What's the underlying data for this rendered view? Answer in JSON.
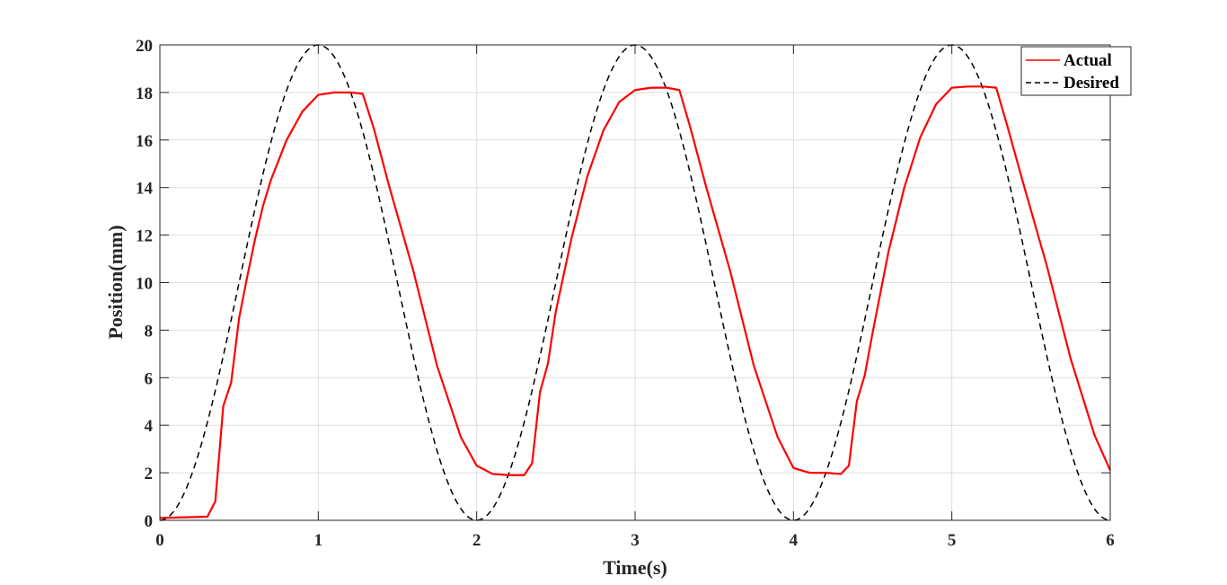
{
  "chart_data": {
    "type": "line",
    "title": "",
    "xlabel": "Time(s)",
    "ylabel": "Position(mm)",
    "xlim": [
      0,
      6
    ],
    "ylim": [
      0,
      20
    ],
    "xticks": [
      0,
      1,
      2,
      3,
      4,
      5,
      6
    ],
    "yticks": [
      0,
      2,
      4,
      6,
      8,
      10,
      12,
      14,
      16,
      18,
      20
    ],
    "grid": true,
    "legend_position": "top-right",
    "series": [
      {
        "name": "Actual",
        "color": "#ff0000",
        "style": "solid",
        "x": [
          0,
          0.3,
          0.35,
          0.4,
          0.45,
          0.5,
          0.55,
          0.6,
          0.65,
          0.7,
          0.8,
          0.9,
          1.0,
          1.1,
          1.2,
          1.28,
          1.35,
          1.45,
          1.6,
          1.75,
          1.9,
          2.0,
          2.1,
          2.2,
          2.3,
          2.35,
          2.4,
          2.45,
          2.5,
          2.6,
          2.7,
          2.8,
          2.9,
          3.0,
          3.1,
          3.2,
          3.28,
          3.35,
          3.45,
          3.6,
          3.75,
          3.9,
          4.0,
          4.1,
          4.2,
          4.3,
          4.35,
          4.4,
          4.45,
          4.5,
          4.6,
          4.7,
          4.8,
          4.9,
          5.0,
          5.1,
          5.2,
          5.28,
          5.35,
          5.45,
          5.6,
          5.75,
          5.9,
          6.0
        ],
        "y": [
          0.1,
          0.15,
          0.8,
          4.8,
          5.8,
          8.5,
          10.2,
          11.8,
          13.2,
          14.3,
          16.0,
          17.2,
          17.9,
          18.0,
          18.0,
          17.95,
          16.5,
          14.0,
          10.5,
          6.5,
          3.5,
          2.3,
          1.95,
          1.9,
          1.9,
          2.4,
          5.4,
          6.6,
          8.8,
          11.9,
          14.5,
          16.4,
          17.6,
          18.1,
          18.2,
          18.2,
          18.1,
          16.5,
          14.0,
          10.5,
          6.5,
          3.5,
          2.2,
          2.0,
          2.0,
          1.95,
          2.3,
          5.0,
          6.1,
          7.9,
          11.3,
          14.0,
          16.1,
          17.5,
          18.2,
          18.25,
          18.25,
          18.2,
          16.6,
          14.2,
          10.7,
          6.8,
          3.6,
          2.1
        ]
      },
      {
        "name": "Desired",
        "color": "#000000",
        "style": "dashed",
        "function": "10*(1-cos(pi*t))",
        "x": [
          0,
          0.25,
          0.5,
          0.75,
          1.0,
          1.25,
          1.5,
          1.75,
          2.0,
          2.25,
          2.5,
          2.75,
          3.0,
          3.25,
          3.5,
          3.75,
          4.0,
          4.25,
          4.5,
          4.75,
          5.0,
          5.25,
          5.5,
          5.75,
          6.0
        ],
        "y": [
          0,
          2.93,
          10,
          17.07,
          20,
          17.07,
          10,
          2.93,
          0,
          2.93,
          10,
          17.07,
          20,
          17.07,
          10,
          2.93,
          0,
          2.93,
          10,
          17.07,
          20,
          17.07,
          10,
          2.93,
          0
        ]
      }
    ]
  }
}
